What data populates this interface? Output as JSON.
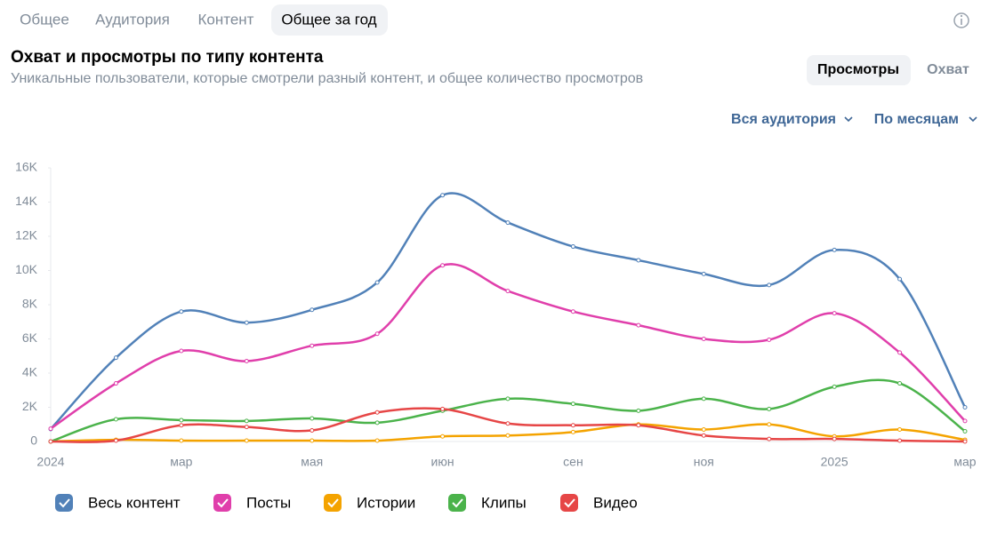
{
  "tabs": [
    "Общее",
    "Аудитория",
    "Контент",
    "Общее за год"
  ],
  "toggles": [
    "Просмотры",
    "Охват"
  ],
  "filters": [
    "Вся аудитория",
    "По месяцам"
  ],
  "chart_data": {
    "type": "line",
    "title": "Охват и просмотры по типу контента",
    "subtitle": "Уникальные пользователи, которые смотрели разный контент, и общее количество просмотров",
    "categories": [
      "2024",
      null,
      "мар",
      null,
      "мая",
      null,
      "июн",
      null,
      "сен",
      null,
      "ноя",
      null,
      "2025",
      null,
      "мар"
    ],
    "ylim": [
      0,
      16000
    ],
    "yticks": [
      0,
      {
        "value": 2000,
        "label": "2K"
      },
      {
        "value": 4000,
        "label": "4K"
      },
      {
        "value": 6000,
        "label": "6K"
      },
      {
        "value": 8000,
        "label": "8K"
      },
      {
        "value": 10000,
        "label": "10K"
      },
      {
        "value": 12000,
        "label": "12K"
      },
      {
        "value": 14000,
        "label": "14K"
      },
      {
        "value": 16000,
        "label": "16K"
      }
    ],
    "grid": false,
    "series": [
      {
        "name": "Весь контент",
        "color": "#5181b8",
        "values": [
          730,
          4900,
          7600,
          6950,
          7700,
          9300,
          14400,
          12800,
          11400,
          10600,
          9800,
          9150,
          11200,
          9500,
          2000
        ]
      },
      {
        "name": "Посты",
        "color": "#e03fab",
        "values": [
          750,
          3400,
          5300,
          4700,
          5600,
          6300,
          10300,
          8800,
          7600,
          6800,
          6000,
          5950,
          7500,
          5200,
          1200
        ]
      },
      {
        "name": "Истории",
        "color": "#f4a300",
        "values": [
          0,
          100,
          50,
          50,
          50,
          50,
          300,
          350,
          550,
          1000,
          700,
          1000,
          300,
          700,
          100
        ]
      },
      {
        "name": "Клипы",
        "color": "#4bb34b",
        "values": [
          0,
          1300,
          1250,
          1200,
          1350,
          1100,
          1800,
          2500,
          2200,
          1800,
          2500,
          1900,
          3200,
          3400,
          600
        ]
      },
      {
        "name": "Видео",
        "color": "#e64646",
        "values": [
          0,
          50,
          950,
          850,
          650,
          1700,
          1900,
          1050,
          950,
          950,
          350,
          150,
          150,
          50,
          0
        ]
      }
    ]
  }
}
